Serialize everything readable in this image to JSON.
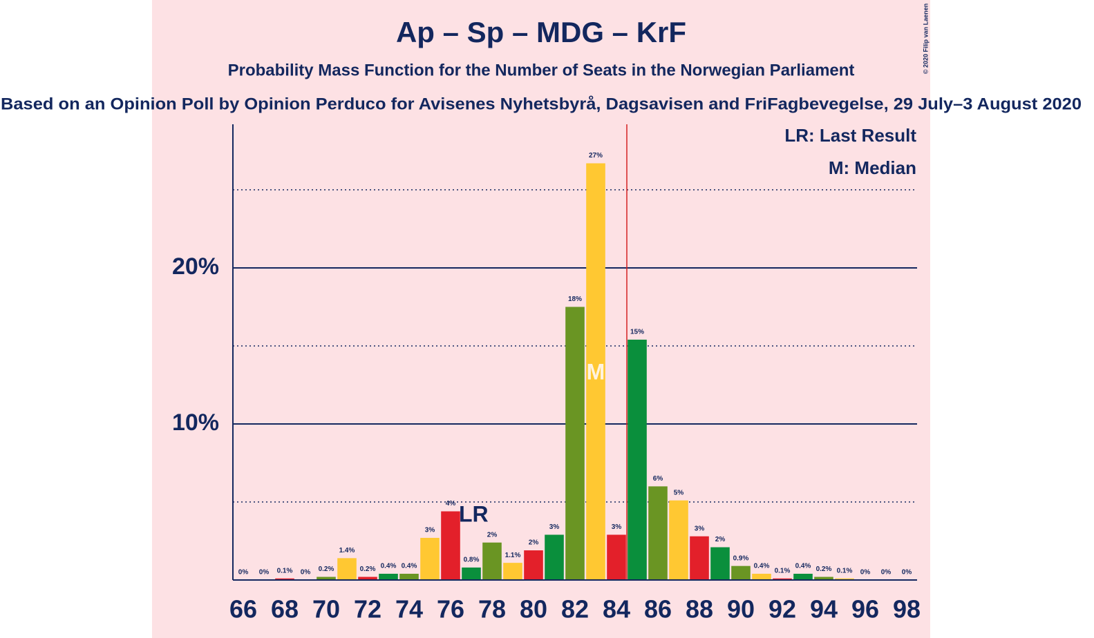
{
  "chart_data": {
    "type": "bar",
    "title": "Ap – Sp – MDG – KrF",
    "subtitle": "Probability Mass Function for the Number of Seats in the Norwegian Parliament",
    "subtitle2": "Based on an Opinion Poll by Opinion Perduco for Avisenes Nyhetsbyrå, Dagsavisen and FriFagbevegelse, 29 July–3 August 2020",
    "copyright": "© 2020 Filip van Laenen",
    "x": [
      66,
      67,
      68,
      69,
      70,
      71,
      72,
      73,
      74,
      75,
      76,
      77,
      78,
      79,
      80,
      81,
      82,
      83,
      84,
      85,
      86,
      87,
      88,
      89,
      90,
      91,
      92,
      93,
      94,
      95,
      96,
      97,
      98
    ],
    "values": [
      0,
      0,
      0.1,
      0,
      0.2,
      1.4,
      0.2,
      0.4,
      0.4,
      2.7,
      4.4,
      0.8,
      2.4,
      1.1,
      1.9,
      2.9,
      17.5,
      26.7,
      2.9,
      15.4,
      6.0,
      5.1,
      2.8,
      2.1,
      0.9,
      0.4,
      0.1,
      0.4,
      0.2,
      0.1,
      0,
      0,
      0
    ],
    "value_labels": [
      "0%",
      "0%",
      "0.1%",
      "0%",
      "0.2%",
      "1.4%",
      "0.2%",
      "0.4%",
      "0.4%",
      "3%",
      "4%",
      "0.8%",
      "2%",
      "1.1%",
      "2%",
      "3%",
      "18%",
      "27%",
      "3%",
      "15%",
      "6%",
      "5%",
      "3%",
      "2%",
      "0.9%",
      "0.4%",
      "0.1%",
      "0.4%",
      "0.2%",
      "0.1%",
      "0%",
      "0%",
      "0%"
    ],
    "colors": [
      "#e3202a",
      "#0a8f3c",
      "#6a9523",
      "#ffc832"
    ],
    "xlim": [
      65.5,
      98.5
    ],
    "xticks": [
      66,
      68,
      70,
      72,
      74,
      76,
      78,
      80,
      82,
      84,
      86,
      88,
      90,
      92,
      94,
      96,
      98
    ],
    "ylim": [
      0,
      29.2
    ],
    "yticks": [
      {
        "value": 10,
        "label": "10%"
      },
      {
        "value": 20,
        "label": "20%"
      }
    ],
    "minor_yticks": [
      5,
      15,
      25
    ],
    "majority_line": 84.5,
    "last_result": 77,
    "last_result_label": "LR",
    "median": 83,
    "median_label": "M",
    "legend": [
      "LR: Last Result",
      "M: Median"
    ]
  }
}
